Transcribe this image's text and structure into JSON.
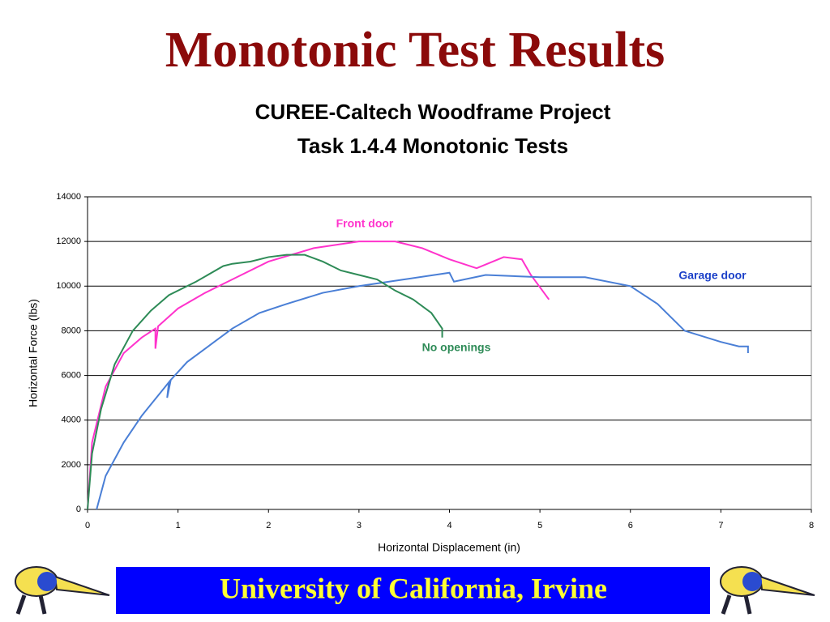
{
  "slide_title": "Monotonic Test Results",
  "footer": "University of California, Irvine",
  "chart_data": {
    "type": "line",
    "title": "CUREE-Caltech Woodframe Project",
    "subtitle": "Task 1.4.4 Monotonic Tests",
    "x_label": "Horizontal Displacement (in)",
    "y_label": "Horizontal Force (lbs)",
    "xlim": [
      0,
      8
    ],
    "xticks": [
      0,
      1,
      2,
      3,
      4,
      5,
      6,
      7,
      8
    ],
    "ylim": [
      0,
      14000
    ],
    "yticks": [
      0,
      2000,
      4000,
      6000,
      8000,
      10000,
      12000,
      14000
    ],
    "grid": true,
    "series": [
      {
        "name": "Front door",
        "color": "#ff33cc",
        "x": [
          0,
          0.05,
          0.2,
          0.4,
          0.6,
          0.75,
          0.75,
          0.78,
          1.0,
          1.3,
          1.6,
          2.0,
          2.5,
          3.0,
          3.4,
          3.7,
          4.0,
          4.3,
          4.6,
          4.8,
          4.9,
          5.1
        ],
        "values": [
          0,
          3000,
          5500,
          7000,
          7700,
          8100,
          7200,
          8200,
          9000,
          9700,
          10300,
          11100,
          11700,
          12000,
          12000,
          11700,
          11200,
          10800,
          11300,
          11200,
          10500,
          9400
        ]
      },
      {
        "name": "Garage door",
        "color": "#4a7fd6",
        "x": [
          0.1,
          0.2,
          0.4,
          0.6,
          0.8,
          0.9,
          0.88,
          0.92,
          1.1,
          1.4,
          1.6,
          1.9,
          2.2,
          2.6,
          3.0,
          3.5,
          4.0,
          4.05,
          4.4,
          5.0,
          5.5,
          6.0,
          6.3,
          6.6,
          7.0,
          7.2,
          7.3,
          7.3
        ],
        "values": [
          0,
          1500,
          3000,
          4200,
          5200,
          5700,
          5000,
          5800,
          6600,
          7500,
          8100,
          8800,
          9200,
          9700,
          10000,
          10300,
          10600,
          10200,
          10500,
          10400,
          10400,
          10000,
          9200,
          8000,
          7500,
          7300,
          7300,
          7000
        ]
      },
      {
        "name": "No openings",
        "color": "#2e8b57",
        "x": [
          0,
          0.05,
          0.15,
          0.3,
          0.5,
          0.7,
          0.9,
          1.2,
          1.5,
          1.6,
          1.8,
          2.0,
          2.2,
          2.4,
          2.6,
          2.8,
          3.0,
          3.2,
          3.4,
          3.6,
          3.8,
          3.92,
          3.92
        ],
        "values": [
          0,
          2500,
          4500,
          6500,
          8000,
          8900,
          9600,
          10200,
          10900,
          11000,
          11100,
          11300,
          11400,
          11400,
          11100,
          10700,
          10500,
          10300,
          9800,
          9400,
          8800,
          8100,
          7700
        ]
      }
    ]
  }
}
